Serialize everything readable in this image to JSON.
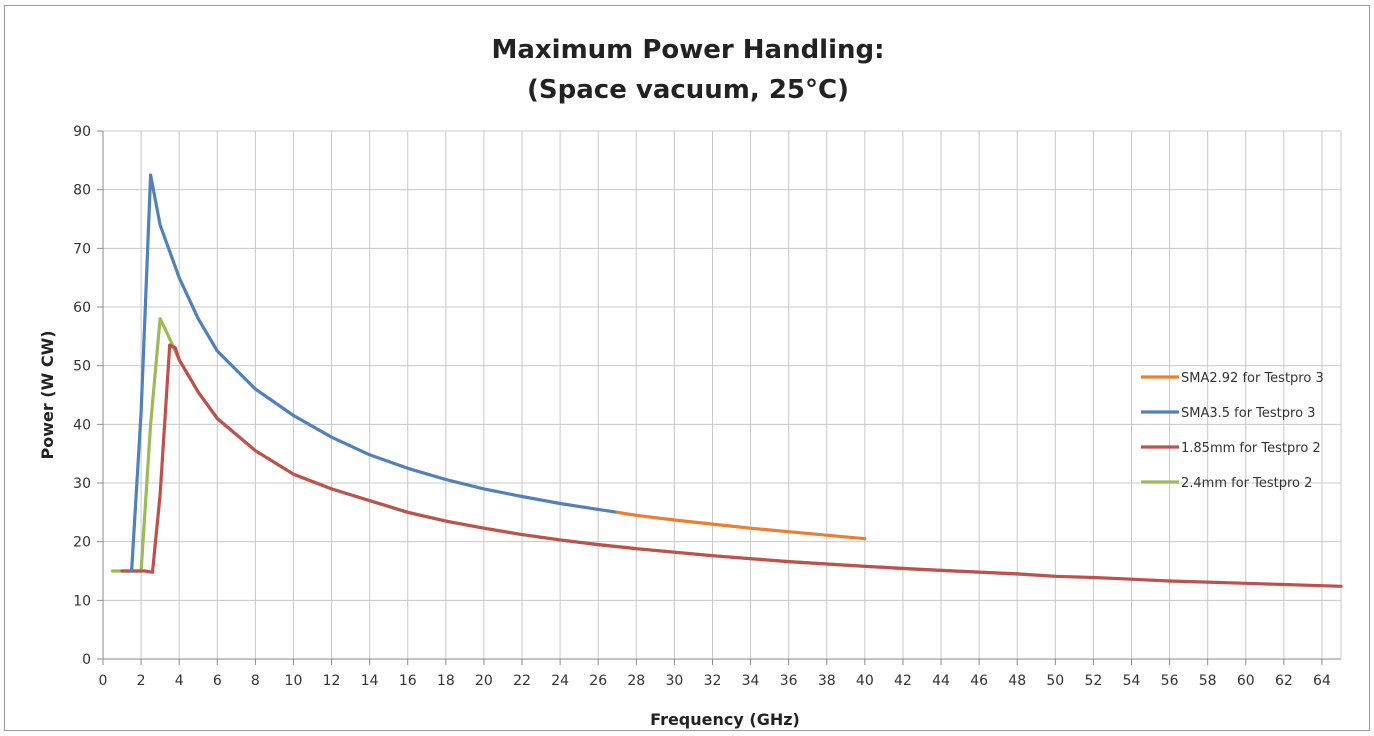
{
  "chart_data": {
    "type": "line",
    "title_lines": [
      "Maximum Power Handling:",
      "(Space vacuum, 25°C)"
    ],
    "xlabel": "Frequency (GHz)",
    "ylabel": "Power (W CW)",
    "xlim": [
      0,
      65
    ],
    "ylim": [
      0,
      90
    ],
    "x_ticks": [
      0,
      2,
      4,
      6,
      8,
      10,
      12,
      14,
      16,
      18,
      20,
      22,
      24,
      26,
      28,
      30,
      32,
      34,
      36,
      38,
      40,
      42,
      44,
      46,
      48,
      50,
      52,
      54,
      56,
      58,
      60,
      62,
      64
    ],
    "y_ticks": [
      0,
      10,
      20,
      30,
      40,
      50,
      60,
      70,
      80,
      90
    ],
    "grid": true,
    "legend_position": "right",
    "series": [
      {
        "name": "SMA2.92 for Testpro 3",
        "color": "#ed7d31",
        "points": [
          [
            27,
            25.0
          ],
          [
            28,
            24.5
          ],
          [
            30,
            23.7
          ],
          [
            32,
            23.0
          ],
          [
            34,
            22.3
          ],
          [
            36,
            21.7
          ],
          [
            38,
            21.1
          ],
          [
            40,
            20.5
          ]
        ]
      },
      {
        "name": "SMA3.5 for Testpro 3",
        "color": "#4f81bd",
        "points": [
          [
            1.5,
            15
          ],
          [
            2.0,
            42
          ],
          [
            2.5,
            82.5
          ],
          [
            3.0,
            74
          ],
          [
            4.0,
            65
          ],
          [
            5,
            58
          ],
          [
            6,
            52.5
          ],
          [
            8,
            46
          ],
          [
            10,
            41.5
          ],
          [
            12,
            37.8
          ],
          [
            14,
            34.8
          ],
          [
            16,
            32.5
          ],
          [
            18,
            30.6
          ],
          [
            20,
            29.0
          ],
          [
            22,
            27.7
          ],
          [
            24,
            26.5
          ],
          [
            26,
            25.5
          ],
          [
            27,
            25.0
          ]
        ]
      },
      {
        "name": "1.85mm for Testpro 2",
        "color": "#c0504d",
        "points": [
          [
            1.0,
            15
          ],
          [
            2.2,
            15
          ],
          [
            2.6,
            14.8
          ],
          [
            3.0,
            28
          ],
          [
            3.5,
            53.5
          ],
          [
            3.8,
            53
          ],
          [
            4.0,
            51
          ],
          [
            5,
            45.5
          ],
          [
            6,
            41
          ],
          [
            8,
            35.5
          ],
          [
            10,
            31.5
          ],
          [
            12,
            29
          ],
          [
            14,
            27
          ],
          [
            16,
            25
          ],
          [
            18,
            23.5
          ],
          [
            20,
            22.3
          ],
          [
            22,
            21.2
          ],
          [
            24,
            20.3
          ],
          [
            26,
            19.5
          ],
          [
            28,
            18.8
          ],
          [
            30,
            18.2
          ],
          [
            32,
            17.6
          ],
          [
            34,
            17.1
          ],
          [
            36,
            16.6
          ],
          [
            38,
            16.2
          ],
          [
            40,
            15.8
          ],
          [
            44,
            15.1
          ],
          [
            48,
            14.5
          ],
          [
            50,
            14.1
          ],
          [
            52,
            13.9
          ],
          [
            54,
            13.6
          ],
          [
            56,
            13.3
          ],
          [
            58,
            13.1
          ],
          [
            60,
            12.9
          ],
          [
            62,
            12.7
          ],
          [
            64,
            12.5
          ],
          [
            65,
            12.4
          ]
        ]
      },
      {
        "name": "2.4mm for Testpro 2",
        "color": "#9bbb59",
        "points": [
          [
            0.5,
            15
          ],
          [
            1.0,
            15
          ],
          [
            1.5,
            15
          ],
          [
            2.0,
            15
          ],
          [
            2.5,
            40
          ],
          [
            3.0,
            58
          ],
          [
            3.3,
            56
          ],
          [
            4.0,
            51
          ],
          [
            5,
            45.5
          ],
          [
            6,
            41
          ],
          [
            8,
            35.5
          ],
          [
            10,
            31.5
          ],
          [
            12,
            29
          ],
          [
            14,
            27
          ],
          [
            16,
            25
          ],
          [
            18,
            23.5
          ],
          [
            20,
            22.3
          ],
          [
            22,
            21.2
          ],
          [
            24,
            20.3
          ],
          [
            26,
            19.5
          ],
          [
            28,
            18.8
          ],
          [
            30,
            18.2
          ],
          [
            32,
            17.6
          ],
          [
            34,
            17.1
          ],
          [
            36,
            16.6
          ],
          [
            38,
            16.2
          ],
          [
            40,
            15.8
          ],
          [
            42,
            15.4
          ],
          [
            44,
            15.1
          ],
          [
            46,
            14.8
          ],
          [
            48,
            14.5
          ],
          [
            50,
            14.1
          ]
        ]
      }
    ]
  }
}
